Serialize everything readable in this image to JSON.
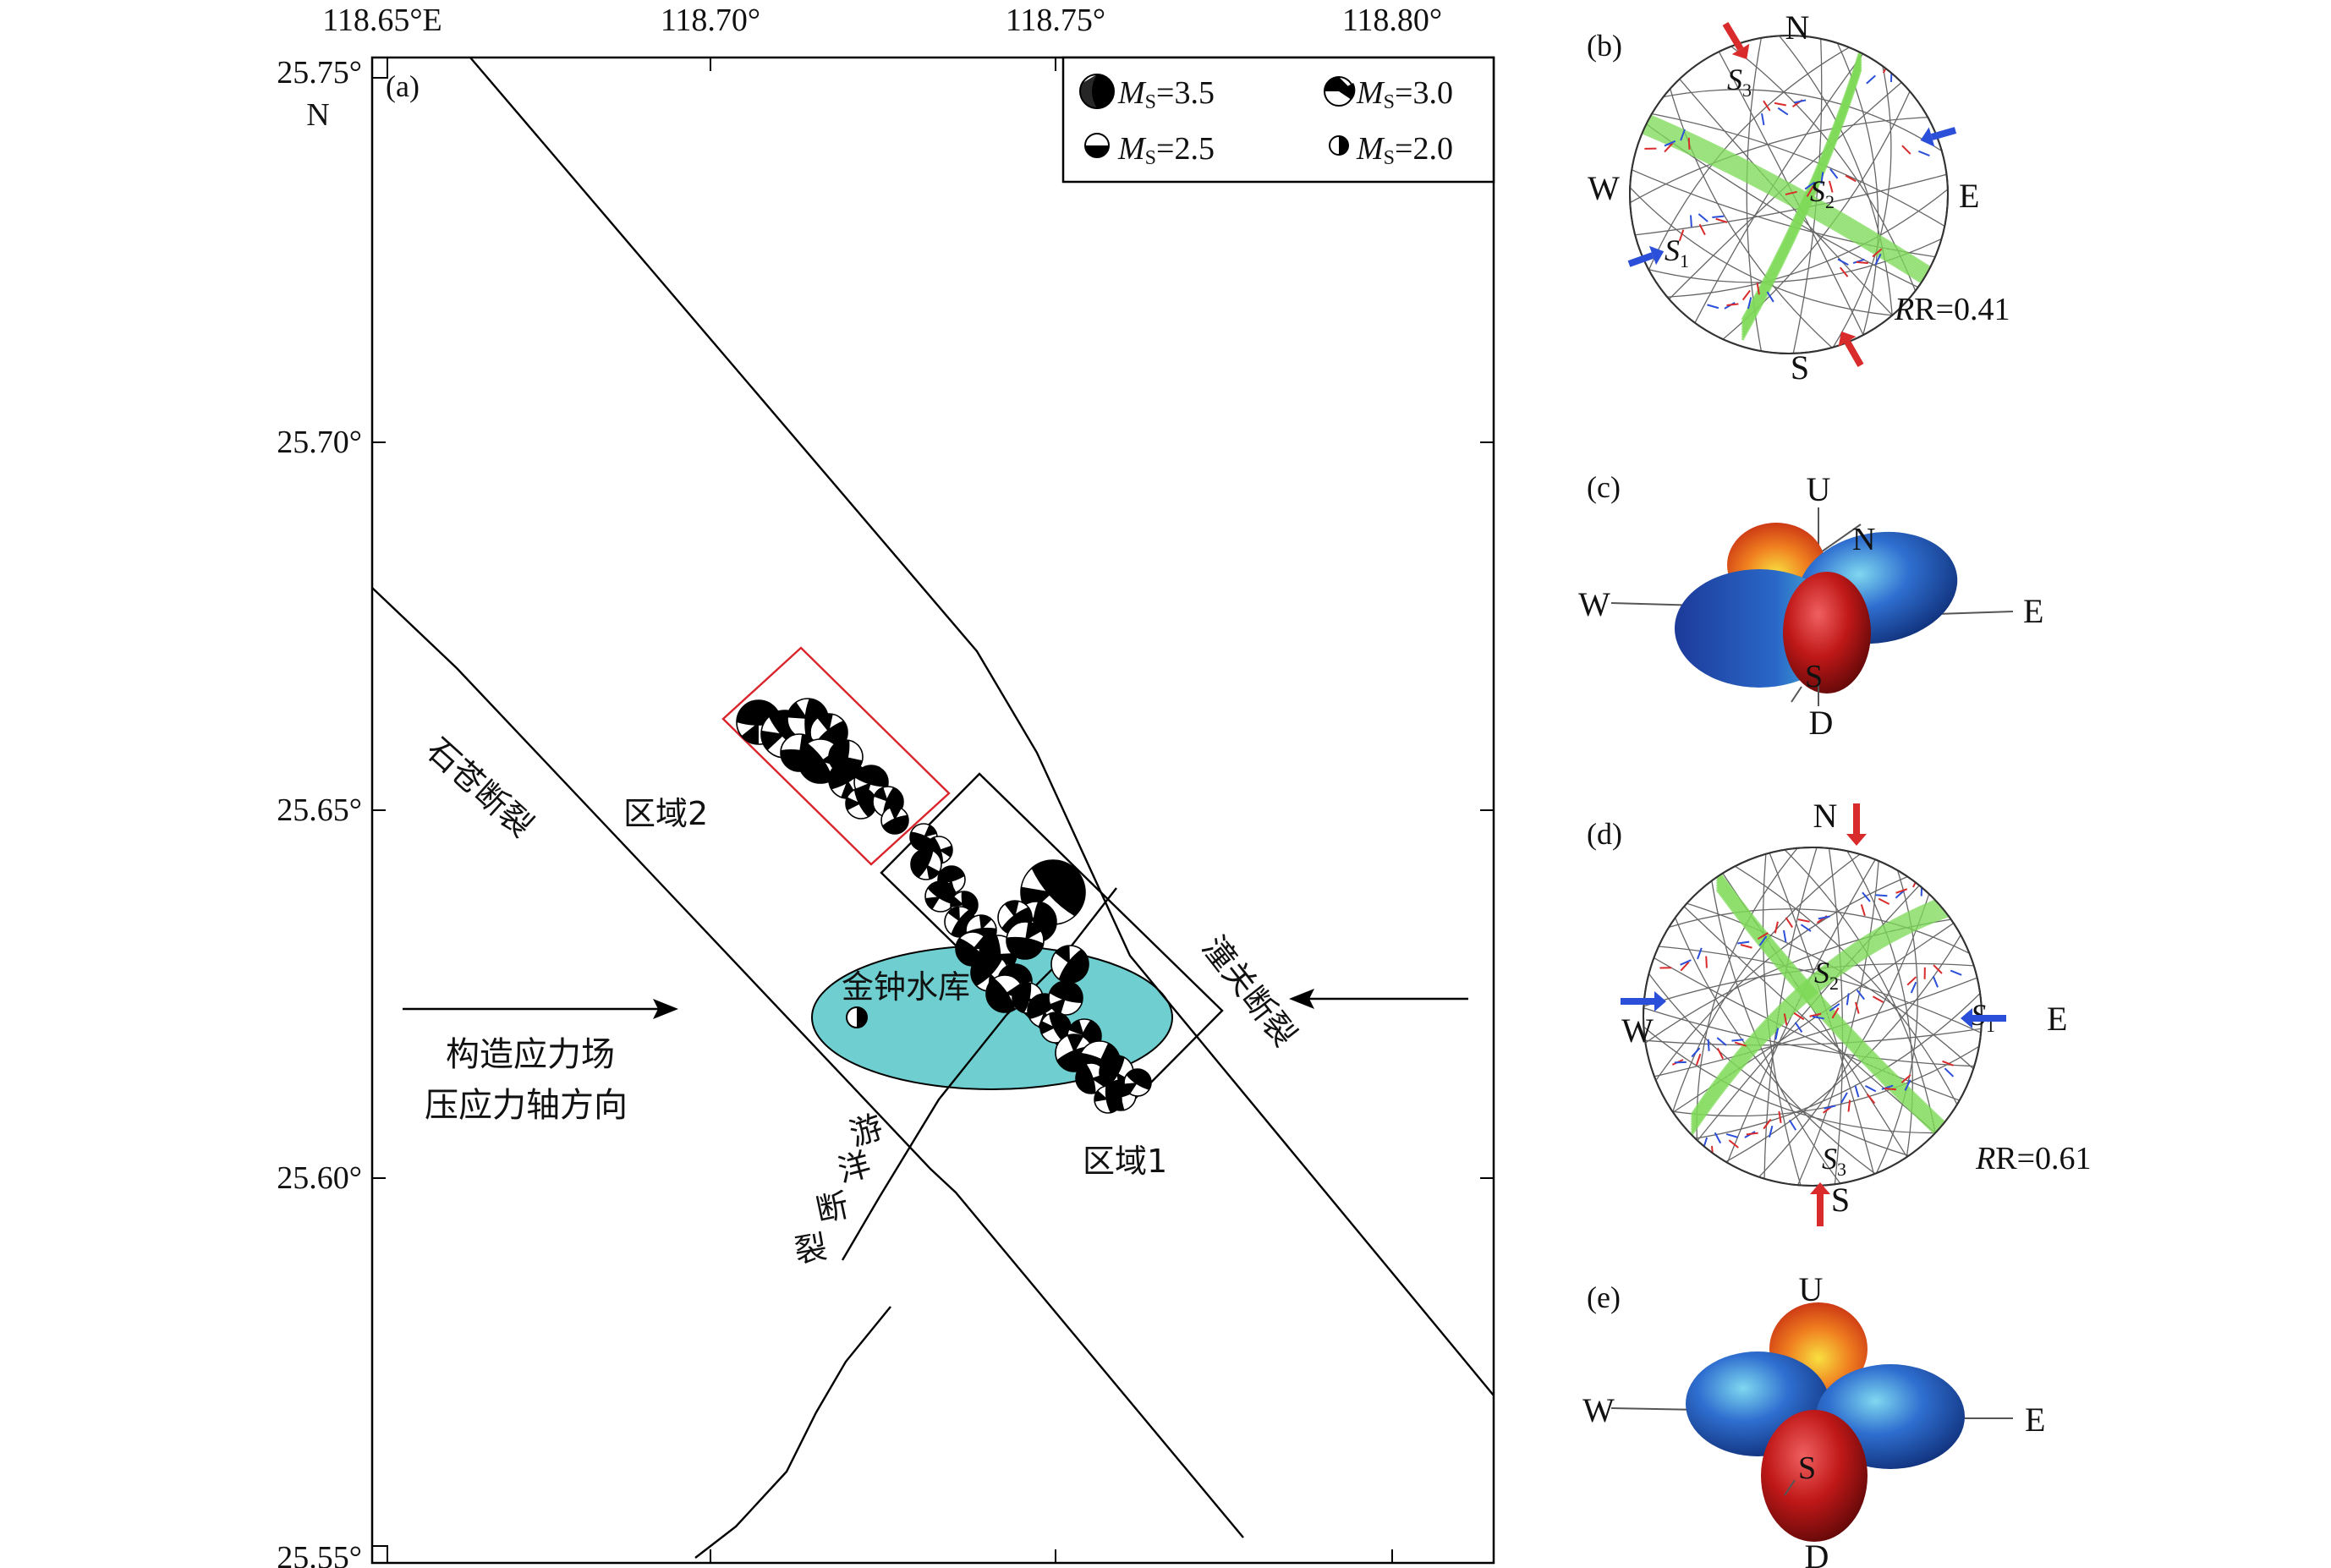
{
  "map": {
    "panel_label": "(a)",
    "lon_ticks": [
      "118.65°E",
      "118.70°",
      "118.75°",
      "118.80°"
    ],
    "lat_ticks": [
      "25.75°",
      "25.70°",
      "25.65°",
      "25.60°",
      "25.55°"
    ],
    "lat_unit": "N",
    "legend": {
      "items": [
        {
          "prefix": "M",
          "sub": "S",
          "value": "=3.5"
        },
        {
          "prefix": "M",
          "sub": "S",
          "value": "=3.0"
        },
        {
          "prefix": "M",
          "sub": "S",
          "value": "=2.5"
        },
        {
          "prefix": "M",
          "sub": "S",
          "value": "=2.0"
        }
      ]
    },
    "labels": {
      "shicang_fault": "石苍断裂",
      "region2": "区域2",
      "region1": "区域1",
      "reservoir": "金钟水库",
      "stress_line1": "构造应力场",
      "stress_line2": "压应力轴方向",
      "youyang_fault": [
        "游",
        "洋",
        "断",
        "裂"
      ],
      "tongguan_fault": "潼关断裂"
    },
    "colors": {
      "reservoir": "#6fcfd0",
      "region2_box": "#d9252b",
      "region1_box": "#000000"
    }
  },
  "panel_b": {
    "label": "(b)",
    "N": "N",
    "E": "E",
    "S": "S",
    "W": "W",
    "s1": {
      "main": "S",
      "sub": "1"
    },
    "s2": {
      "main": "S",
      "sub": "2"
    },
    "s3": {
      "main": "S",
      "sub": "3"
    },
    "r": "R=0.41"
  },
  "panel_c": {
    "label": "(c)",
    "U": "U",
    "N": "N",
    "W": "W",
    "E": "E",
    "S": "S",
    "D": "D"
  },
  "panel_d": {
    "label": "(d)",
    "N": "N",
    "E": "E",
    "S": "S",
    "W": "W",
    "s1": {
      "main": "S",
      "sub": "1"
    },
    "s2": {
      "main": "S",
      "sub": "2"
    },
    "s3": {
      "main": "S",
      "sub": "3"
    },
    "r": "R=0.61"
  },
  "panel_e": {
    "label": "(e)",
    "U": "U",
    "W": "W",
    "E": "E",
    "S": "S",
    "D": "D"
  }
}
